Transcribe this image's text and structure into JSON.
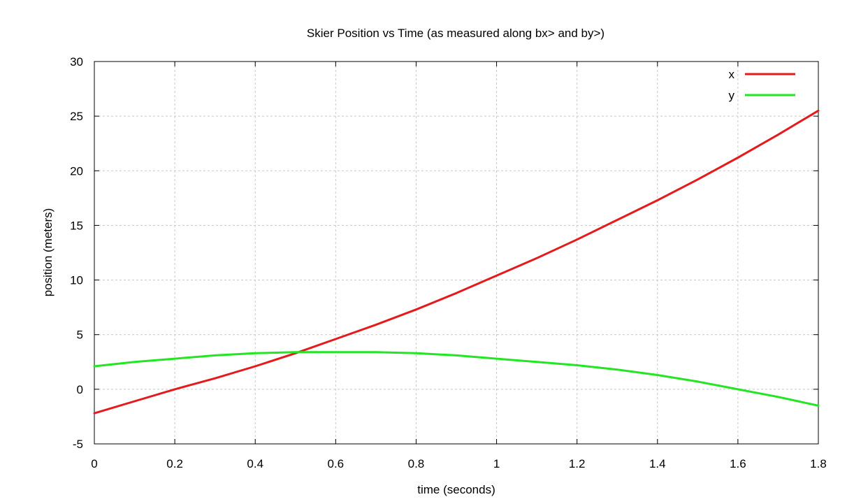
{
  "chart_data": {
    "type": "line",
    "title": "Skier Position vs Time (as measured along bx> and by>)",
    "xlabel": "time (seconds)",
    "ylabel": "position (meters)",
    "xlim": [
      0,
      1.8
    ],
    "ylim": [
      -5,
      30
    ],
    "xticks": [
      0,
      0.2,
      0.4,
      0.6,
      0.8,
      1,
      1.2,
      1.4,
      1.6,
      1.8
    ],
    "xtick_labels": [
      "0",
      "0.2",
      "0.4",
      "0.6",
      "0.8",
      "1",
      "1.2",
      "1.4",
      "1.6",
      "1.8"
    ],
    "yticks": [
      -5,
      0,
      5,
      10,
      15,
      20,
      25,
      30
    ],
    "ytick_labels": [
      "-5",
      "0",
      "5",
      "10",
      "15",
      "20",
      "25",
      "30"
    ],
    "grid": true,
    "legend_position": "top-right",
    "series": [
      {
        "name": "x",
        "color": "#e41a1c",
        "x": [
          0,
          0.1,
          0.2,
          0.3,
          0.4,
          0.5,
          0.6,
          0.7,
          0.8,
          0.9,
          1.0,
          1.1,
          1.2,
          1.3,
          1.4,
          1.5,
          1.6,
          1.7,
          1.8
        ],
        "y": [
          -2.2,
          -1.1,
          0.0,
          1.0,
          2.1,
          3.3,
          4.6,
          5.9,
          7.3,
          8.8,
          10.4,
          12.0,
          13.7,
          15.5,
          17.3,
          19.2,
          21.2,
          23.3,
          25.5
        ]
      },
      {
        "name": "y",
        "color": "#22e622",
        "x": [
          0,
          0.1,
          0.2,
          0.3,
          0.4,
          0.5,
          0.6,
          0.7,
          0.8,
          0.9,
          1.0,
          1.1,
          1.2,
          1.3,
          1.4,
          1.5,
          1.6,
          1.7,
          1.8
        ],
        "y": [
          2.1,
          2.5,
          2.8,
          3.1,
          3.3,
          3.4,
          3.4,
          3.4,
          3.3,
          3.1,
          2.8,
          2.5,
          2.2,
          1.8,
          1.3,
          0.7,
          0.0,
          -0.7,
          -1.5
        ]
      }
    ]
  }
}
